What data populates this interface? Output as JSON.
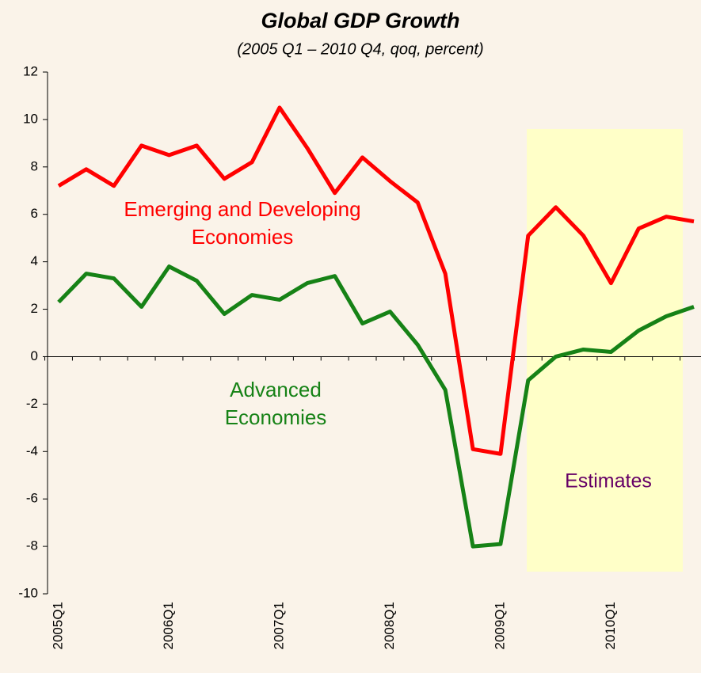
{
  "chart_data": {
    "type": "line",
    "title": "Global GDP Growth",
    "subtitle": "(2005 Q1 – 2010 Q4, qoq, percent)",
    "categories": [
      "2005Q1",
      null,
      null,
      null,
      "2006Q1",
      null,
      null,
      null,
      "2007Q1",
      null,
      null,
      null,
      "2008Q1",
      null,
      null,
      null,
      "2009Q1",
      null,
      null,
      null,
      "2010Q1",
      null,
      null,
      null
    ],
    "series": [
      {
        "name": "Emerging and Developing Economies",
        "color": "#ff0000",
        "values": [
          7.2,
          7.9,
          7.2,
          8.9,
          8.5,
          8.9,
          7.5,
          8.2,
          10.5,
          8.8,
          6.9,
          8.4,
          7.4,
          6.5,
          3.5,
          -3.9,
          -4.1,
          5.1,
          6.3,
          5.1,
          3.1,
          5.4,
          5.9,
          5.7
        ]
      },
      {
        "name": "Advanced Economies",
        "color": "#168216",
        "values": [
          2.3,
          3.5,
          3.3,
          2.1,
          3.8,
          3.2,
          1.8,
          2.6,
          2.4,
          3.1,
          3.4,
          1.4,
          1.9,
          0.5,
          -1.4,
          -8.0,
          -7.9,
          -1.0,
          0.0,
          0.3,
          0.2,
          1.1,
          1.7,
          2.1
        ]
      }
    ],
    "annotation": "Estimates",
    "ylim": [
      -10,
      12
    ],
    "yticks": [
      -10,
      -8,
      -6,
      -4,
      -2,
      0,
      2,
      4,
      6,
      8,
      10,
      12
    ]
  }
}
